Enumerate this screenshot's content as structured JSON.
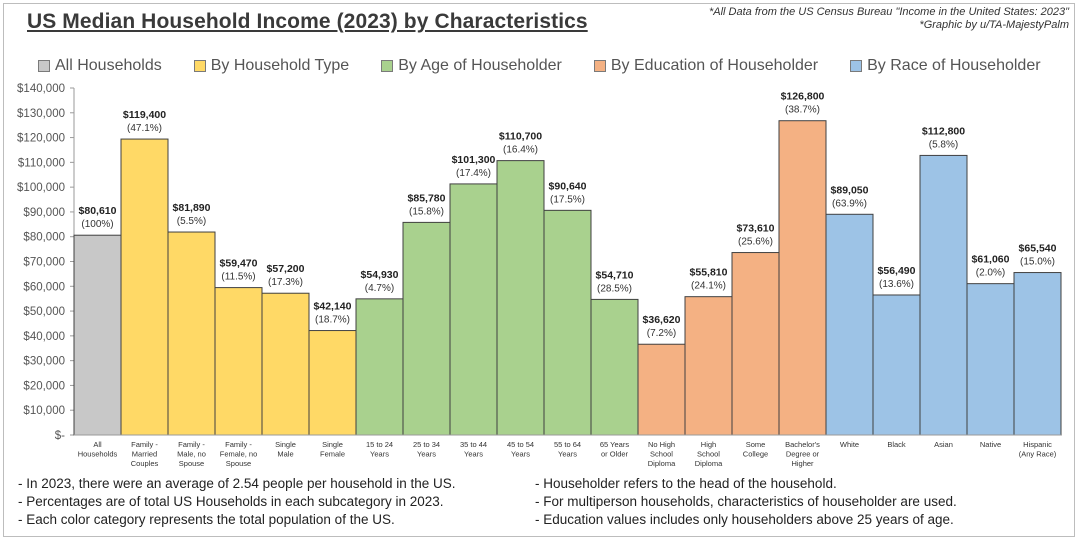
{
  "title": "US Median Household Income (2023) by Characteristics",
  "source": [
    "*All Data from the US Census Bureau \"Income in the United States: 2023\"",
    "*Graphic by u/TA-MajestyPalm"
  ],
  "legend": [
    {
      "label": "All Households",
      "color": "#c8c8c8"
    },
    {
      "label": "By Household Type",
      "color": "#ffd966"
    },
    {
      "label": "By Age of Householder",
      "color": "#a9d18e"
    },
    {
      "label": "By Education of Householder",
      "color": "#f4b183"
    },
    {
      "label": "By Race of Householder",
      "color": "#9dc3e6"
    }
  ],
  "chart_data": {
    "type": "bar",
    "title": "US Median Household Income (2023) by Characteristics",
    "xlabel": "",
    "ylabel": "",
    "ylim": [
      0,
      140000
    ],
    "yticks": [
      "$-",
      "$10,000",
      "$20,000",
      "$30,000",
      "$40,000",
      "$50,000",
      "$60,000",
      "$70,000",
      "$80,000",
      "$90,000",
      "$100,000",
      "$110,000",
      "$120,000",
      "$130,000",
      "$140,000"
    ],
    "grid": false,
    "bars": [
      {
        "category": "All Households",
        "value": 80610,
        "label": "$80,610",
        "percent": "(100%)",
        "group": 0
      },
      {
        "category": "Family - Married Couples",
        "value": 119400,
        "label": "$119,400",
        "percent": "(47.1%)",
        "group": 1
      },
      {
        "category": "Family - Male, no Spouse",
        "value": 81890,
        "label": "$81,890",
        "percent": "(5.5%)",
        "group": 1
      },
      {
        "category": "Family - Female, no Spouse",
        "value": 59470,
        "label": "$59,470",
        "percent": "(11.5%)",
        "group": 1
      },
      {
        "category": "Single Male",
        "value": 57200,
        "label": "$57,200",
        "percent": "(17.3%)",
        "group": 1
      },
      {
        "category": "Single Female",
        "value": 42140,
        "label": "$42,140",
        "percent": "(18.7%)",
        "group": 1
      },
      {
        "category": "15 to 24 Years",
        "value": 54930,
        "label": "$54,930",
        "percent": "(4.7%)",
        "group": 2
      },
      {
        "category": "25 to 34 Years",
        "value": 85780,
        "label": "$85,780",
        "percent": "(15.8%)",
        "group": 2
      },
      {
        "category": "35 to 44 Years",
        "value": 101300,
        "label": "$101,300",
        "percent": "(17.4%)",
        "group": 2
      },
      {
        "category": "45 to 54 Years",
        "value": 110700,
        "label": "$110,700",
        "percent": "(16.4%)",
        "group": 2
      },
      {
        "category": "55 to 64 Years",
        "value": 90640,
        "label": "$90,640",
        "percent": "(17.5%)",
        "group": 2
      },
      {
        "category": "65 Years or Older",
        "value": 54710,
        "label": "$54,710",
        "percent": "(28.5%)",
        "group": 2
      },
      {
        "category": "No High School Diploma",
        "value": 36620,
        "label": "$36,620",
        "percent": "(7.2%)",
        "group": 3
      },
      {
        "category": "High School Diploma",
        "value": 55810,
        "label": "$55,810",
        "percent": "(24.1%)",
        "group": 3
      },
      {
        "category": "Some College",
        "value": 73610,
        "label": "$73,610",
        "percent": "(25.6%)",
        "group": 3
      },
      {
        "category": "Bachelor's Degree or Higher",
        "value": 126800,
        "label": "$126,800",
        "percent": "(38.7%)",
        "group": 3
      },
      {
        "category": "White",
        "value": 89050,
        "label": "$89,050",
        "percent": "(63.9%)",
        "group": 4
      },
      {
        "category": "Black",
        "value": 56490,
        "label": "$56,490",
        "percent": "(13.6%)",
        "group": 4
      },
      {
        "category": "Asian",
        "value": 112800,
        "label": "$112,800",
        "percent": "(5.8%)",
        "group": 4
      },
      {
        "category": "Native",
        "value": 61060,
        "label": "$61,060",
        "percent": "(2.0%)",
        "group": 4
      },
      {
        "category": "Hispanic (Any Race)",
        "value": 65540,
        "label": "$65,540",
        "percent": "(15.0%)",
        "group": 4
      }
    ]
  },
  "notes_left": [
    "- In 2023, there were an average of 2.54 people per household in the US.",
    "- Percentages are of total US Households in each subcategory in 2023.",
    "- Each color category represents the total population of the US."
  ],
  "notes_right": [
    "- Householder refers to the head of the household.",
    "- For multiperson households, characteristics of householder are used.",
    "- Education values includes only householders above 25 years of age."
  ]
}
